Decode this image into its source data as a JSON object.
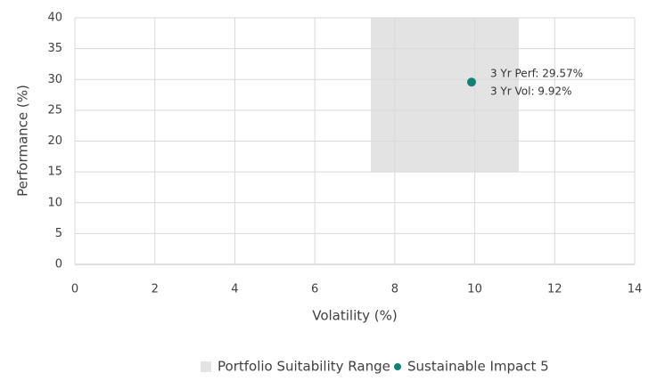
{
  "chart_data": {
    "type": "scatter",
    "xlabel": "Volatility (%)",
    "ylabel": "Performance (%)",
    "xlim": [
      0,
      14
    ],
    "ylim": [
      0,
      40
    ],
    "xticks": [
      0,
      2,
      4,
      6,
      8,
      10,
      12,
      14
    ],
    "yticks": [
      0,
      5,
      10,
      15,
      20,
      25,
      30,
      35,
      40
    ],
    "grid": true,
    "range": {
      "name": "Portfolio Suitability Range",
      "color": "#e3e3e3",
      "x": [
        7.4,
        11.1
      ],
      "y": [
        15,
        40
      ]
    },
    "series": [
      {
        "name": "Sustainable Impact 5",
        "color": "#138078",
        "x": [
          9.92
        ],
        "y": [
          29.57
        ]
      }
    ],
    "annotations": [
      "3 Yr Perf: 29.57%",
      "3 Yr Vol: 9.92%"
    ],
    "legend": "bottom"
  }
}
